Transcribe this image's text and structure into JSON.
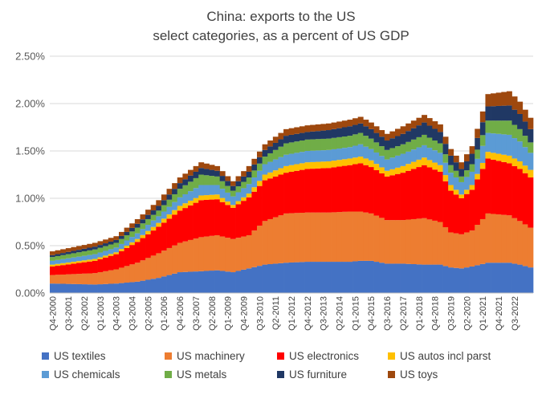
{
  "chart_data": {
    "type": "area",
    "title": "China: exports to the US",
    "subtitle": "select categories, as a percent of US GDP",
    "xlabel": "",
    "ylabel": "",
    "ylim": [
      0,
      0.025
    ],
    "y_ticks": [
      "0.00%",
      "0.50%",
      "1.00%",
      "1.50%",
      "2.00%",
      "2.50%"
    ],
    "y_tick_values": [
      0,
      0.005,
      0.01,
      0.015,
      0.02,
      0.025
    ],
    "grid": true,
    "legend_position": "bottom",
    "stacked": true,
    "anchors": [
      {
        "q": 0,
        "tex": 0.1,
        "mach": 0.09,
        "elec": 0.09,
        "auto": 0.02,
        "chem": 0.04,
        "met": 0.04,
        "fur": 0.02,
        "toy": 0.04
      },
      {
        "q": 8,
        "tex": 0.09,
        "mach": 0.12,
        "elec": 0.13,
        "auto": 0.02,
        "chem": 0.05,
        "met": 0.05,
        "fur": 0.03,
        "toy": 0.04
      },
      {
        "q": 12,
        "tex": 0.1,
        "mach": 0.15,
        "elec": 0.16,
        "auto": 0.02,
        "chem": 0.05,
        "met": 0.05,
        "fur": 0.03,
        "toy": 0.04
      },
      {
        "q": 16,
        "tex": 0.12,
        "mach": 0.2,
        "elec": 0.22,
        "auto": 0.03,
        "chem": 0.06,
        "met": 0.06,
        "fur": 0.04,
        "toy": 0.05
      },
      {
        "q": 20,
        "tex": 0.16,
        "mach": 0.26,
        "elec": 0.28,
        "auto": 0.04,
        "chem": 0.07,
        "met": 0.06,
        "fur": 0.05,
        "toy": 0.06
      },
      {
        "q": 24,
        "tex": 0.22,
        "mach": 0.31,
        "elec": 0.34,
        "auto": 0.05,
        "chem": 0.09,
        "met": 0.09,
        "fur": 0.06,
        "toy": 0.06
      },
      {
        "q": 28,
        "tex": 0.23,
        "mach": 0.36,
        "elec": 0.39,
        "auto": 0.05,
        "chem": 0.11,
        "met": 0.11,
        "fur": 0.07,
        "toy": 0.06
      },
      {
        "q": 31,
        "tex": 0.24,
        "mach": 0.37,
        "elec": 0.38,
        "auto": 0.05,
        "chem": 0.1,
        "met": 0.09,
        "fur": 0.06,
        "toy": 0.05
      },
      {
        "q": 34,
        "tex": 0.22,
        "mach": 0.35,
        "elec": 0.33,
        "auto": 0.03,
        "chem": 0.09,
        "met": 0.06,
        "fur": 0.05,
        "toy": 0.05
      },
      {
        "q": 37,
        "tex": 0.26,
        "mach": 0.35,
        "elec": 0.4,
        "auto": 0.04,
        "chem": 0.1,
        "met": 0.07,
        "fur": 0.06,
        "toy": 0.06
      },
      {
        "q": 40,
        "tex": 0.3,
        "mach": 0.46,
        "elec": 0.43,
        "auto": 0.06,
        "chem": 0.11,
        "met": 0.08,
        "fur": 0.07,
        "toy": 0.06
      },
      {
        "q": 44,
        "tex": 0.32,
        "mach": 0.52,
        "elec": 0.43,
        "auto": 0.07,
        "chem": 0.12,
        "met": 0.12,
        "fur": 0.08,
        "toy": 0.07
      },
      {
        "q": 48,
        "tex": 0.33,
        "mach": 0.52,
        "elec": 0.46,
        "auto": 0.07,
        "chem": 0.12,
        "met": 0.12,
        "fur": 0.08,
        "toy": 0.07
      },
      {
        "q": 52,
        "tex": 0.33,
        "mach": 0.52,
        "elec": 0.47,
        "auto": 0.07,
        "chem": 0.12,
        "met": 0.12,
        "fur": 0.09,
        "toy": 0.07
      },
      {
        "q": 56,
        "tex": 0.33,
        "mach": 0.53,
        "elec": 0.49,
        "auto": 0.07,
        "chem": 0.12,
        "met": 0.12,
        "fur": 0.1,
        "toy": 0.07
      },
      {
        "q": 58,
        "tex": 0.34,
        "mach": 0.52,
        "elec": 0.51,
        "auto": 0.07,
        "chem": 0.13,
        "met": 0.12,
        "fur": 0.1,
        "toy": 0.07
      },
      {
        "q": 60,
        "tex": 0.34,
        "mach": 0.5,
        "elec": 0.49,
        "auto": 0.07,
        "chem": 0.12,
        "met": 0.11,
        "fur": 0.1,
        "toy": 0.07
      },
      {
        "q": 63,
        "tex": 0.31,
        "mach": 0.46,
        "elec": 0.46,
        "auto": 0.06,
        "chem": 0.12,
        "met": 0.1,
        "fur": 0.1,
        "toy": 0.07
      },
      {
        "q": 66,
        "tex": 0.31,
        "mach": 0.46,
        "elec": 0.5,
        "auto": 0.07,
        "chem": 0.13,
        "met": 0.1,
        "fur": 0.11,
        "toy": 0.08
      },
      {
        "q": 70,
        "tex": 0.3,
        "mach": 0.49,
        "elec": 0.56,
        "auto": 0.08,
        "chem": 0.13,
        "met": 0.11,
        "fur": 0.13,
        "toy": 0.08
      },
      {
        "q": 73,
        "tex": 0.3,
        "mach": 0.45,
        "elec": 0.53,
        "auto": 0.07,
        "chem": 0.13,
        "met": 0.1,
        "fur": 0.12,
        "toy": 0.08
      },
      {
        "q": 75,
        "tex": 0.27,
        "mach": 0.37,
        "elec": 0.44,
        "auto": 0.06,
        "chem": 0.13,
        "met": 0.08,
        "fur": 0.1,
        "toy": 0.07
      },
      {
        "q": 77,
        "tex": 0.26,
        "mach": 0.36,
        "elec": 0.38,
        "auto": 0.04,
        "chem": 0.13,
        "met": 0.06,
        "fur": 0.08,
        "toy": 0.07
      },
      {
        "q": 79,
        "tex": 0.28,
        "mach": 0.38,
        "elec": 0.43,
        "auto": 0.05,
        "chem": 0.14,
        "met": 0.08,
        "fur": 0.11,
        "toy": 0.08
      },
      {
        "q": 82,
        "tex": 0.32,
        "mach": 0.52,
        "elec": 0.58,
        "auto": 0.07,
        "chem": 0.2,
        "met": 0.13,
        "fur": 0.15,
        "toy": 0.13
      },
      {
        "q": 86,
        "tex": 0.32,
        "mach": 0.5,
        "elec": 0.55,
        "auto": 0.08,
        "chem": 0.22,
        "met": 0.15,
        "fur": 0.16,
        "toy": 0.15
      },
      {
        "q": 88,
        "tex": 0.3,
        "mach": 0.46,
        "elec": 0.55,
        "auto": 0.08,
        "chem": 0.21,
        "met": 0.13,
        "fur": 0.16,
        "toy": 0.13
      },
      {
        "q": 90,
        "tex": 0.27,
        "mach": 0.42,
        "elec": 0.53,
        "auto": 0.08,
        "chem": 0.18,
        "met": 0.11,
        "fur": 0.14,
        "toy": 0.12
      }
    ],
    "series": [
      {
        "key": "tex",
        "name": "US textiles",
        "color": "#4472C4"
      },
      {
        "key": "mach",
        "name": "US machinery",
        "color": "#ED7D31"
      },
      {
        "key": "elec",
        "name": "US electronics",
        "color": "#FF0000"
      },
      {
        "key": "auto",
        "name": "US autos incl parst",
        "color": "#FFC000"
      },
      {
        "key": "chem",
        "name": "US chemicals",
        "color": "#5B9BD5"
      },
      {
        "key": "met",
        "name": "US metals",
        "color": "#70AD47"
      },
      {
        "key": "fur",
        "name": "US furniture",
        "color": "#203864"
      },
      {
        "key": "toy",
        "name": "US toys",
        "color": "#9E480E"
      }
    ],
    "x_range": [
      "Q4-2000",
      "Q2-2023"
    ],
    "x_tick_labels": [
      "Q4-2000",
      "Q3-2001",
      "Q2-2002",
      "Q1-2003",
      "Q4-2003",
      "Q3-2004",
      "Q2-2005",
      "Q1-2006",
      "Q4-2006",
      "Q3-2007",
      "Q2-2008",
      "Q1-2009",
      "Q4-2009",
      "Q3-2010",
      "Q2-2011",
      "Q1-2012",
      "Q4-2012",
      "Q3-2013",
      "Q2-2014",
      "Q1-2015",
      "Q4-2015",
      "Q3-2016",
      "Q2-2017",
      "Q1-2018",
      "Q4-2018",
      "Q3-2019",
      "Q2-2020",
      "Q1-2021",
      "Q4-2021",
      "Q3-2022"
    ]
  }
}
